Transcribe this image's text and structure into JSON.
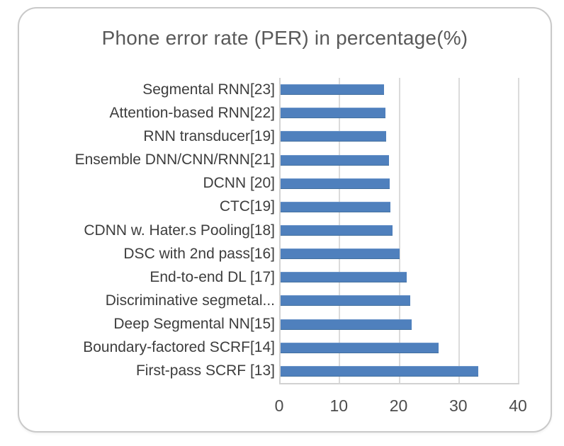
{
  "chart_data": {
    "type": "bar",
    "orientation": "horizontal",
    "title": "Phone error rate (PER) in percentage(%)",
    "categories": [
      "Segmental RNN[23]",
      "Attention-based RNN[22]",
      "RNN transducer[19]",
      "Ensemble DNN/CNN/RNN[21]",
      "DCNN [20]",
      "CTC[19]",
      "CDNN w. Hater.s Pooling[18]",
      "DSC with 2nd pass[16]",
      "End-to-end DL [17]",
      "Discriminative segmetal...",
      "Deep Segmental NN[15]",
      "Boundary-factored SCRF[14]",
      "First-pass SCRF [13]"
    ],
    "values": [
      17.3,
      17.6,
      17.7,
      18.2,
      18.3,
      18.4,
      18.7,
      19.9,
      21.1,
      21.7,
      21.9,
      26.5,
      33.1
    ],
    "xlabel": "",
    "ylabel": "",
    "xlim": [
      0,
      40
    ],
    "x_ticks": [
      0,
      10,
      20,
      30,
      40
    ],
    "x_tick_labels": [
      "0",
      "10",
      "20",
      "30",
      "40"
    ],
    "grid": "vertical-major",
    "legend": "none",
    "bar_color": "#4f80bd",
    "gridline_color": "#dbdbdb",
    "title_color": "#595959",
    "label_color": "#3d3d3d"
  }
}
